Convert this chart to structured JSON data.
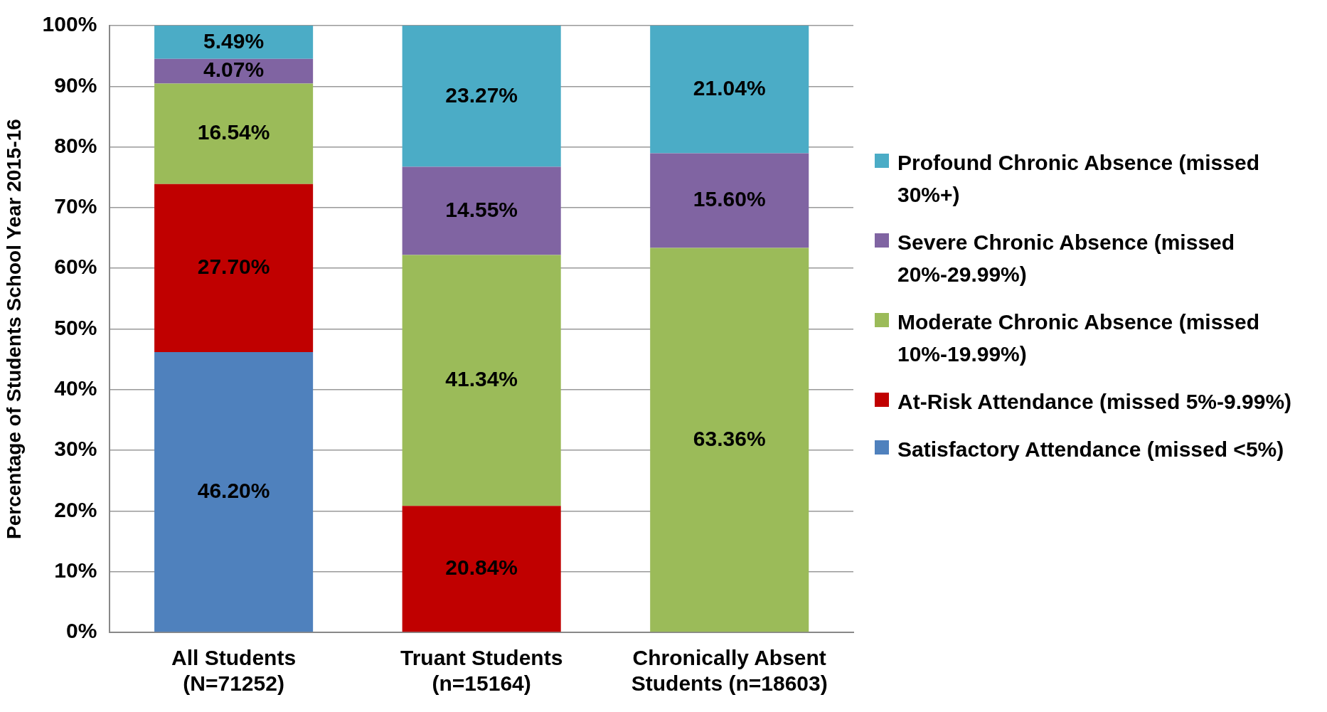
{
  "chart_data": {
    "type": "bar",
    "stacked": true,
    "ylabel": "Percentage of Students School Year 2015-16",
    "categories": [
      "All Students (N=71252)",
      "Truant Students (n=15164)",
      "Chronically Absent Students (n=18603)"
    ],
    "series": [
      {
        "name": "Satisfactory Attendance (missed <5%)",
        "color": "#4f81bd",
        "values": [
          46.2,
          null,
          null
        ],
        "value_labels": [
          "46.20%",
          null,
          null
        ]
      },
      {
        "name": "At-Risk Attendance (missed 5%-9.99%)",
        "color": "#c00000",
        "values": [
          27.7,
          20.84,
          null
        ],
        "value_labels": [
          "27.70%",
          "20.84%",
          null
        ]
      },
      {
        "name": "Moderate Chronic Absence (missed 10%-19.99%)",
        "color": "#9bbb59",
        "values": [
          16.54,
          41.34,
          63.36
        ],
        "value_labels": [
          "16.54%",
          "41.34%",
          "63.36%"
        ]
      },
      {
        "name": "Severe Chronic Absence (missed 20%-29.99%)",
        "color": "#8064a2",
        "values": [
          4.07,
          14.55,
          15.6
        ],
        "value_labels": [
          "4.07%",
          "14.55%",
          "15.60%"
        ]
      },
      {
        "name": "Profound Chronic Absence (missed 30%+)",
        "color": "#4bacc6",
        "values": [
          5.49,
          23.27,
          21.04
        ],
        "value_labels": [
          "5.49%",
          "23.27%",
          "21.04%"
        ]
      }
    ],
    "ylim": [
      0,
      100
    ],
    "yticks": [
      {
        "value": 0,
        "label": "0%"
      },
      {
        "value": 10,
        "label": "10%"
      },
      {
        "value": 20,
        "label": "20%"
      },
      {
        "value": 30,
        "label": "30%"
      },
      {
        "value": 40,
        "label": "40%"
      },
      {
        "value": 50,
        "label": "50%"
      },
      {
        "value": 60,
        "label": "60%"
      },
      {
        "value": 70,
        "label": "70%"
      },
      {
        "value": 80,
        "label": "80%"
      },
      {
        "value": 90,
        "label": "90%"
      },
      {
        "value": 100,
        "label": "100%"
      }
    ],
    "grid": "y",
    "legend": "right"
  }
}
